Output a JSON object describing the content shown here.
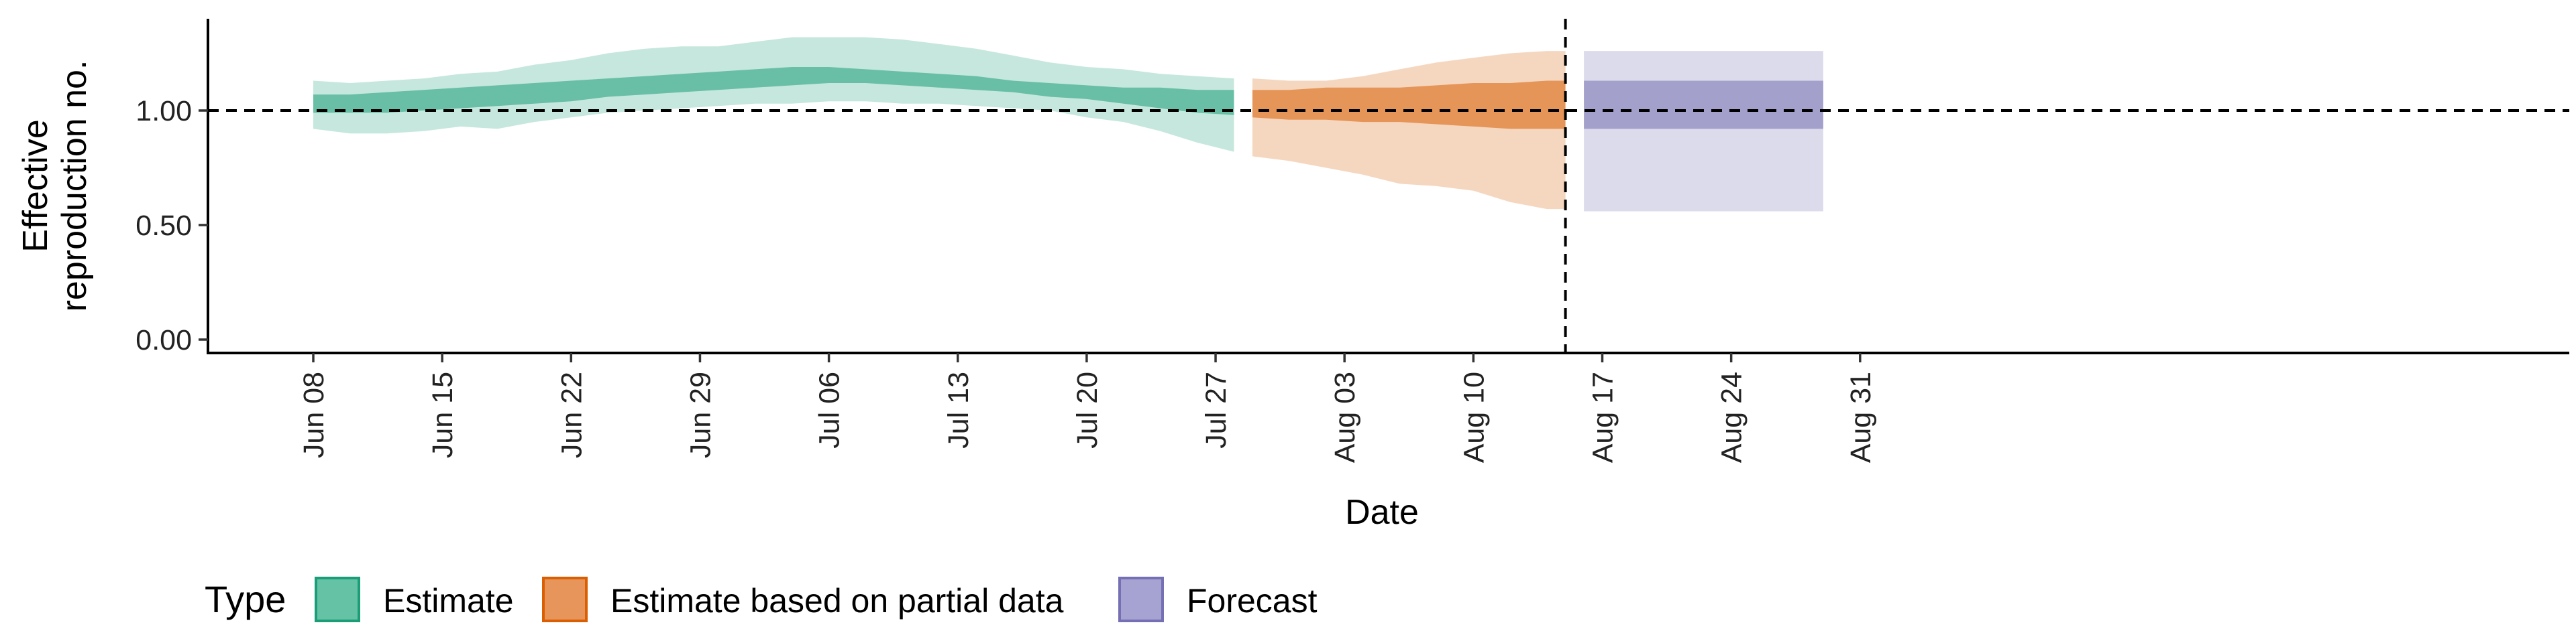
{
  "chart_data": {
    "type": "area",
    "xlabel": "Date",
    "ylabel_lines": [
      "Effective",
      "reproduction no."
    ],
    "yticks": [
      {
        "value": 0.0,
        "label": "0.00"
      },
      {
        "value": 0.5,
        "label": "0.50"
      },
      {
        "value": 1.0,
        "label": "1.00"
      }
    ],
    "ylim": [
      -0.06,
      1.38
    ],
    "xlim": [
      "2020-06-02",
      "2020-09-03"
    ],
    "xticks": [
      {
        "date": "2020-06-08",
        "label": "Jun 08"
      },
      {
        "date": "2020-06-15",
        "label": "Jun 15"
      },
      {
        "date": "2020-06-22",
        "label": "Jun 22"
      },
      {
        "date": "2020-06-29",
        "label": "Jun 29"
      },
      {
        "date": "2020-07-06",
        "label": "Jul 06"
      },
      {
        "date": "2020-07-13",
        "label": "Jul 13"
      },
      {
        "date": "2020-07-20",
        "label": "Jul 20"
      },
      {
        "date": "2020-07-27",
        "label": "Jul 27"
      },
      {
        "date": "2020-08-03",
        "label": "Aug 03"
      },
      {
        "date": "2020-08-10",
        "label": "Aug 10"
      },
      {
        "date": "2020-08-17",
        "label": "Aug 17"
      },
      {
        "date": "2020-08-24",
        "label": "Aug 24"
      },
      {
        "date": "2020-08-31",
        "label": "Aug 31"
      }
    ],
    "reference_line_y": 1.0,
    "vertical_line_date": "2020-08-15",
    "grid": false,
    "legend": {
      "position": "bottom-left",
      "title": "Type",
      "items": [
        {
          "label": "Estimate",
          "fill": "#66c2a5",
          "border": "#1b9e77"
        },
        {
          "label": "Estimate based on partial data",
          "fill": "#e8955c",
          "border": "#d95f02"
        },
        {
          "label": "Forecast",
          "fill": "#a6a3d2",
          "border": "#7570b3"
        }
      ]
    },
    "series": [
      {
        "name": "Estimate",
        "color": "#1b9e77",
        "x": [
          "2020-06-08",
          "2020-06-10",
          "2020-06-12",
          "2020-06-14",
          "2020-06-16",
          "2020-06-18",
          "2020-06-20",
          "2020-06-22",
          "2020-06-24",
          "2020-06-26",
          "2020-06-28",
          "2020-06-30",
          "2020-07-02",
          "2020-07-04",
          "2020-07-06",
          "2020-07-08",
          "2020-07-10",
          "2020-07-12",
          "2020-07-14",
          "2020-07-16",
          "2020-07-18",
          "2020-07-20",
          "2020-07-22",
          "2020-07-24",
          "2020-07-26",
          "2020-07-28"
        ],
        "lower90": [
          0.92,
          0.9,
          0.9,
          0.91,
          0.93,
          0.92,
          0.95,
          0.97,
          0.99,
          1.0,
          1.01,
          1.02,
          1.03,
          1.03,
          1.04,
          1.04,
          1.03,
          1.03,
          1.02,
          1.01,
          1.0,
          0.97,
          0.95,
          0.91,
          0.86,
          0.82
        ],
        "upper90": [
          1.13,
          1.12,
          1.13,
          1.14,
          1.16,
          1.17,
          1.2,
          1.22,
          1.25,
          1.27,
          1.28,
          1.28,
          1.3,
          1.32,
          1.32,
          1.32,
          1.31,
          1.29,
          1.27,
          1.24,
          1.21,
          1.19,
          1.18,
          1.16,
          1.15,
          1.14
        ],
        "lower50": [
          0.99,
          0.99,
          0.99,
          1.0,
          1.01,
          1.02,
          1.03,
          1.04,
          1.06,
          1.07,
          1.08,
          1.09,
          1.1,
          1.11,
          1.12,
          1.12,
          1.11,
          1.1,
          1.09,
          1.08,
          1.06,
          1.05,
          1.03,
          1.01,
          0.99,
          0.98
        ],
        "upper50": [
          1.07,
          1.07,
          1.08,
          1.09,
          1.1,
          1.11,
          1.12,
          1.13,
          1.14,
          1.15,
          1.16,
          1.17,
          1.18,
          1.19,
          1.19,
          1.18,
          1.17,
          1.16,
          1.15,
          1.13,
          1.12,
          1.11,
          1.1,
          1.1,
          1.09,
          1.09
        ]
      },
      {
        "name": "Estimate based on partial data",
        "color": "#d95f02",
        "x": [
          "2020-07-29",
          "2020-07-31",
          "2020-08-02",
          "2020-08-04",
          "2020-08-06",
          "2020-08-08",
          "2020-08-10",
          "2020-08-12",
          "2020-08-14",
          "2020-08-15"
        ],
        "lower90": [
          0.8,
          0.78,
          0.75,
          0.72,
          0.68,
          0.67,
          0.65,
          0.6,
          0.57,
          0.57
        ],
        "upper90": [
          1.14,
          1.13,
          1.13,
          1.15,
          1.18,
          1.21,
          1.23,
          1.25,
          1.26,
          1.26
        ],
        "lower50": [
          0.97,
          0.96,
          0.96,
          0.95,
          0.95,
          0.94,
          0.93,
          0.92,
          0.92,
          0.92
        ],
        "upper50": [
          1.09,
          1.09,
          1.1,
          1.1,
          1.1,
          1.11,
          1.12,
          1.12,
          1.13,
          1.13
        ]
      },
      {
        "name": "Forecast",
        "color": "#7570b3",
        "x": [
          "2020-08-16",
          "2020-08-29"
        ],
        "lower90": [
          0.56,
          0.56
        ],
        "upper90": [
          1.26,
          1.26
        ],
        "lower50": [
          0.92,
          0.92
        ],
        "upper50": [
          1.13,
          1.13
        ]
      }
    ]
  }
}
